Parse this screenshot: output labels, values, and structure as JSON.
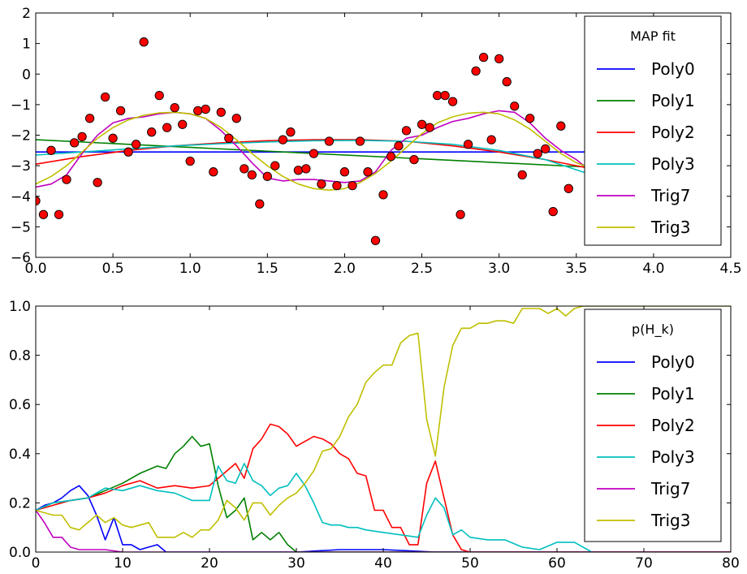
{
  "chart_data": [
    {
      "type": "scatter",
      "title": "",
      "xlabel": "",
      "ylabel": "",
      "xlim": [
        0.0,
        4.5
      ],
      "ylim": [
        -6,
        2
      ],
      "xticks": [
        "0.0",
        "0.5",
        "1.0",
        "1.5",
        "2.0",
        "2.5",
        "3.0",
        "3.5",
        "4.0",
        "4.5"
      ],
      "yticks": [
        "2",
        "1",
        "0",
        "−1",
        "−2",
        "−3",
        "−4",
        "−5",
        "−6"
      ],
      "grid": false,
      "legend_title": "MAP fit",
      "legend_position": "right",
      "points": [
        [
          0.0,
          -4.15
        ],
        [
          0.05,
          -4.6
        ],
        [
          0.1,
          -2.5
        ],
        [
          0.15,
          -4.6
        ],
        [
          0.2,
          -3.45
        ],
        [
          0.25,
          -2.25
        ],
        [
          0.3,
          -2.05
        ],
        [
          0.35,
          -1.45
        ],
        [
          0.4,
          -3.55
        ],
        [
          0.45,
          -0.75
        ],
        [
          0.5,
          -2.1
        ],
        [
          0.55,
          -1.2
        ],
        [
          0.6,
          -2.55
        ],
        [
          0.65,
          -2.3
        ],
        [
          0.7,
          1.05
        ],
        [
          0.75,
          -1.9
        ],
        [
          0.8,
          -0.7
        ],
        [
          0.85,
          -1.75
        ],
        [
          0.9,
          -1.1
        ],
        [
          0.95,
          -1.65
        ],
        [
          1.0,
          -2.85
        ],
        [
          1.05,
          -1.2
        ],
        [
          1.1,
          -1.15
        ],
        [
          1.15,
          -3.2
        ],
        [
          1.2,
          -1.25
        ],
        [
          1.25,
          -2.1
        ],
        [
          1.3,
          -1.45
        ],
        [
          1.35,
          -3.1
        ],
        [
          1.4,
          -3.3
        ],
        [
          1.45,
          -4.25
        ],
        [
          1.5,
          -3.35
        ],
        [
          1.55,
          -3.0
        ],
        [
          1.6,
          -2.15
        ],
        [
          1.65,
          -1.9
        ],
        [
          1.7,
          -3.15
        ],
        [
          1.75,
          -3.1
        ],
        [
          1.8,
          -2.6
        ],
        [
          1.85,
          -3.6
        ],
        [
          1.9,
          -2.2
        ],
        [
          1.95,
          -3.65
        ],
        [
          2.0,
          -3.2
        ],
        [
          2.05,
          -3.65
        ],
        [
          2.1,
          -2.2
        ],
        [
          2.15,
          -3.2
        ],
        [
          2.2,
          -5.45
        ],
        [
          2.25,
          -3.95
        ],
        [
          2.3,
          -2.7
        ],
        [
          2.35,
          -2.35
        ],
        [
          2.4,
          -1.85
        ],
        [
          2.45,
          -2.8
        ],
        [
          2.5,
          -1.65
        ],
        [
          2.55,
          -1.75
        ],
        [
          2.6,
          -0.7
        ],
        [
          2.65,
          -0.7
        ],
        [
          2.7,
          -0.9
        ],
        [
          2.75,
          -4.6
        ],
        [
          2.8,
          -2.3
        ],
        [
          2.85,
          0.1
        ],
        [
          2.9,
          0.55
        ],
        [
          2.95,
          -2.15
        ],
        [
          3.0,
          0.5
        ],
        [
          3.05,
          -0.25
        ],
        [
          3.1,
          -1.05
        ],
        [
          3.15,
          -3.3
        ],
        [
          3.2,
          -1.45
        ],
        [
          3.25,
          -2.6
        ],
        [
          3.3,
          -2.45
        ],
        [
          3.35,
          -4.5
        ],
        [
          3.4,
          -1.7
        ],
        [
          3.45,
          -3.75
        ]
      ],
      "series": [
        {
          "name": "Poly0",
          "color": "#0000ff",
          "x": [
            0.0,
            3.6
          ],
          "y": [
            -2.55,
            -2.55
          ]
        },
        {
          "name": "Poly1",
          "color": "#008000",
          "x": [
            0.0,
            3.6
          ],
          "y": [
            -2.15,
            -3.05
          ]
        },
        {
          "name": "Poly2",
          "color": "#ff0000",
          "x": [
            0.0,
            0.3,
            0.6,
            0.9,
            1.2,
            1.5,
            1.8,
            2.1,
            2.4,
            2.7,
            3.0,
            3.3,
            3.6
          ],
          "y": [
            -2.95,
            -2.7,
            -2.5,
            -2.35,
            -2.25,
            -2.18,
            -2.15,
            -2.15,
            -2.2,
            -2.35,
            -2.55,
            -2.8,
            -3.1
          ]
        },
        {
          "name": "Poly3",
          "color": "#00bfbf",
          "x": [
            0.0,
            0.3,
            0.6,
            0.9,
            1.2,
            1.5,
            1.8,
            2.1,
            2.4,
            2.7,
            3.0,
            3.3,
            3.6
          ],
          "y": [
            -2.65,
            -2.55,
            -2.45,
            -2.35,
            -2.28,
            -2.22,
            -2.18,
            -2.17,
            -2.2,
            -2.3,
            -2.5,
            -2.8,
            -3.3
          ]
        },
        {
          "name": "Trig7",
          "color": "#bf00bf",
          "x": [
            0.0,
            0.1,
            0.2,
            0.3,
            0.4,
            0.5,
            0.6,
            0.7,
            0.8,
            0.9,
            1.0,
            1.1,
            1.2,
            1.3,
            1.4,
            1.5,
            1.6,
            1.7,
            1.8,
            1.9,
            2.0,
            2.1,
            2.2,
            2.3,
            2.4,
            2.5,
            2.6,
            2.7,
            2.8,
            2.9,
            3.0,
            3.1,
            3.2,
            3.3,
            3.4,
            3.5,
            3.6
          ],
          "y": [
            -3.7,
            -3.6,
            -3.3,
            -2.6,
            -2.0,
            -1.6,
            -1.45,
            -1.4,
            -1.3,
            -1.25,
            -1.3,
            -1.45,
            -1.85,
            -2.35,
            -2.9,
            -3.4,
            -3.5,
            -3.45,
            -3.45,
            -3.5,
            -3.55,
            -3.5,
            -3.2,
            -2.5,
            -2.1,
            -2.0,
            -1.75,
            -1.55,
            -1.45,
            -1.3,
            -1.2,
            -1.25,
            -1.6,
            -2.1,
            -2.5,
            -2.8,
            -3.2
          ]
        },
        {
          "name": "Trig3",
          "color": "#bfbf00",
          "x": [
            0.0,
            0.1,
            0.2,
            0.3,
            0.4,
            0.5,
            0.6,
            0.7,
            0.8,
            0.9,
            1.0,
            1.1,
            1.2,
            1.3,
            1.4,
            1.5,
            1.6,
            1.7,
            1.8,
            1.9,
            2.0,
            2.1,
            2.2,
            2.3,
            2.4,
            2.5,
            2.6,
            2.7,
            2.8,
            2.9,
            3.0,
            3.1,
            3.2,
            3.3,
            3.4,
            3.5,
            3.6
          ],
          "y": [
            -3.6,
            -3.35,
            -3.0,
            -2.55,
            -2.1,
            -1.75,
            -1.5,
            -1.35,
            -1.27,
            -1.25,
            -1.3,
            -1.45,
            -1.75,
            -2.15,
            -2.6,
            -3.0,
            -3.35,
            -3.6,
            -3.75,
            -3.8,
            -3.75,
            -3.55,
            -3.25,
            -2.85,
            -2.4,
            -1.95,
            -1.6,
            -1.4,
            -1.28,
            -1.25,
            -1.3,
            -1.5,
            -1.8,
            -2.2,
            -2.6,
            -2.9,
            -3.1
          ]
        }
      ]
    },
    {
      "type": "line",
      "title": "",
      "xlabel": "",
      "ylabel": "",
      "xlim": [
        0,
        80
      ],
      "ylim": [
        0.0,
        1.0
      ],
      "xticks": [
        "0",
        "10",
        "20",
        "30",
        "40",
        "50",
        "60",
        "70",
        "80"
      ],
      "yticks": [
        "1.0",
        "0.8",
        "0.6",
        "0.4",
        "0.2",
        "0.0"
      ],
      "grid": false,
      "legend_title": "p(H_k)",
      "legend_position": "right",
      "series": [
        {
          "name": "Poly0",
          "color": "#0000ff",
          "x": [
            0,
            1,
            2,
            3,
            4,
            5,
            6,
            7,
            8,
            9,
            10,
            11,
            12,
            13,
            14,
            15,
            16,
            30,
            35,
            40,
            46,
            50,
            80
          ],
          "y": [
            0.17,
            0.19,
            0.2,
            0.22,
            0.25,
            0.27,
            0.23,
            0.15,
            0.05,
            0.14,
            0.03,
            0.03,
            0.01,
            0.02,
            0.03,
            0.0,
            0.0,
            0.0,
            0.01,
            0.01,
            0.0,
            0.0,
            0.0
          ]
        },
        {
          "name": "Poly1",
          "color": "#008000",
          "x": [
            0,
            2,
            4,
            6,
            8,
            10,
            12,
            14,
            15,
            16,
            17,
            18,
            19,
            20,
            21,
            22,
            23,
            24,
            25,
            26,
            27,
            28,
            29,
            30,
            31,
            80
          ],
          "y": [
            0.17,
            0.2,
            0.21,
            0.22,
            0.25,
            0.28,
            0.32,
            0.35,
            0.34,
            0.4,
            0.43,
            0.47,
            0.43,
            0.44,
            0.27,
            0.14,
            0.17,
            0.22,
            0.05,
            0.08,
            0.05,
            0.08,
            0.03,
            0.0,
            0.0,
            0.0
          ]
        },
        {
          "name": "Poly2",
          "color": "#ff0000",
          "x": [
            0,
            2,
            4,
            6,
            8,
            10,
            12,
            14,
            16,
            18,
            20,
            21,
            22,
            23,
            24,
            25,
            26,
            27,
            28,
            29,
            30,
            31,
            32,
            33,
            34,
            35,
            36,
            37,
            38,
            39,
            40,
            41,
            42,
            43,
            44,
            45,
            46,
            47,
            48,
            49,
            50,
            80
          ],
          "y": [
            0.17,
            0.19,
            0.21,
            0.22,
            0.24,
            0.27,
            0.29,
            0.26,
            0.27,
            0.26,
            0.27,
            0.3,
            0.33,
            0.36,
            0.3,
            0.42,
            0.46,
            0.52,
            0.51,
            0.48,
            0.43,
            0.45,
            0.47,
            0.46,
            0.44,
            0.4,
            0.38,
            0.32,
            0.31,
            0.17,
            0.17,
            0.1,
            0.1,
            0.03,
            0.03,
            0.28,
            0.37,
            0.22,
            0.07,
            0.01,
            0.0,
            0.0
          ]
        },
        {
          "name": "Poly3",
          "color": "#00bfbf",
          "x": [
            0,
            2,
            4,
            6,
            8,
            10,
            12,
            14,
            16,
            18,
            20,
            21,
            22,
            23,
            24,
            25,
            26,
            27,
            28,
            29,
            30,
            31,
            32,
            33,
            34,
            35,
            36,
            37,
            38,
            40,
            42,
            44,
            45,
            46,
            47,
            48,
            49,
            50,
            52,
            54,
            56,
            58,
            60,
            62,
            64
          ],
          "y": [
            0.17,
            0.2,
            0.21,
            0.22,
            0.26,
            0.25,
            0.27,
            0.25,
            0.24,
            0.21,
            0.21,
            0.35,
            0.29,
            0.28,
            0.36,
            0.29,
            0.27,
            0.23,
            0.26,
            0.27,
            0.32,
            0.27,
            0.2,
            0.12,
            0.11,
            0.11,
            0.1,
            0.1,
            0.09,
            0.08,
            0.07,
            0.06,
            0.15,
            0.22,
            0.18,
            0.07,
            0.09,
            0.06,
            0.05,
            0.05,
            0.02,
            0.01,
            0.04,
            0.04,
            0.0
          ]
        },
        {
          "name": "Trig7",
          "color": "#bf00bf",
          "x": [
            0,
            1,
            2,
            3,
            4,
            5,
            6,
            8,
            10,
            12,
            15,
            80
          ],
          "y": [
            0.17,
            0.12,
            0.06,
            0.06,
            0.02,
            0.01,
            0.01,
            0.01,
            0.0,
            0.0,
            0.0,
            0.0
          ]
        },
        {
          "name": "Trig3",
          "color": "#bfbf00",
          "x": [
            0,
            1,
            2,
            3,
            4,
            5,
            6,
            7,
            8,
            9,
            10,
            11,
            12,
            13,
            14,
            15,
            16,
            17,
            18,
            19,
            20,
            21,
            22,
            23,
            24,
            25,
            26,
            27,
            28,
            29,
            30,
            31,
            32,
            33,
            34,
            35,
            36,
            37,
            38,
            39,
            40,
            41,
            42,
            43,
            44,
            45,
            46,
            47,
            48,
            49,
            50,
            51,
            52,
            53,
            54,
            55,
            56,
            57,
            58,
            59,
            60,
            61,
            62,
            63,
            80
          ],
          "y": [
            0.17,
            0.16,
            0.15,
            0.15,
            0.1,
            0.09,
            0.12,
            0.15,
            0.12,
            0.14,
            0.11,
            0.1,
            0.11,
            0.12,
            0.06,
            0.06,
            0.06,
            0.08,
            0.06,
            0.09,
            0.09,
            0.13,
            0.21,
            0.18,
            0.13,
            0.2,
            0.2,
            0.15,
            0.19,
            0.22,
            0.24,
            0.28,
            0.33,
            0.41,
            0.42,
            0.47,
            0.55,
            0.6,
            0.69,
            0.73,
            0.76,
            0.76,
            0.85,
            0.88,
            0.89,
            0.54,
            0.39,
            0.67,
            0.84,
            0.91,
            0.91,
            0.93,
            0.93,
            0.94,
            0.94,
            0.93,
            0.99,
            0.99,
            0.99,
            0.97,
            0.99,
            0.96,
            0.99,
            1.0,
            1.0
          ]
        }
      ]
    }
  ]
}
